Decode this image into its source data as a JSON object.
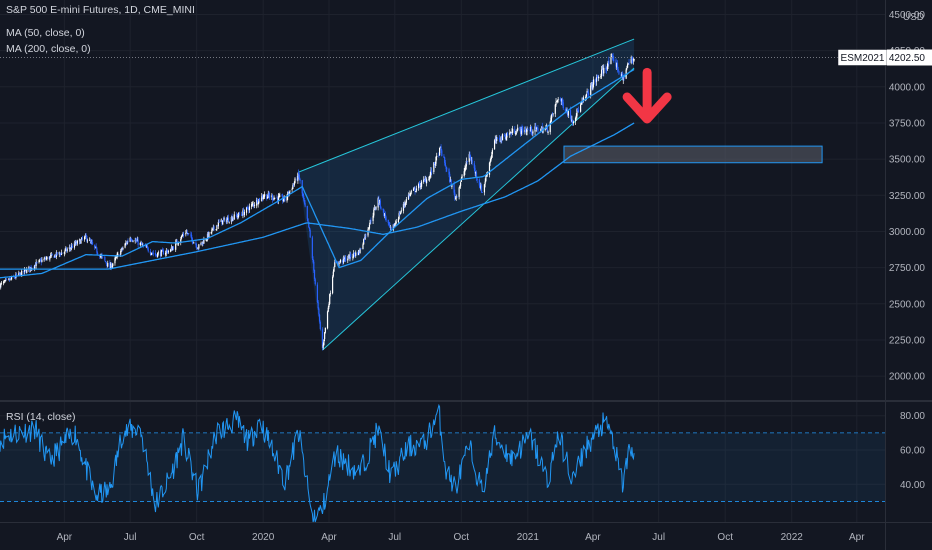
{
  "header": {
    "title": "S&P 500 E-mini Futures, 1D, CME_MINI",
    "ma50_label": "MA (50, close, 0)",
    "ma200_label": "MA (200, close, 0)",
    "rsi_label": "RSI (14, close)",
    "currency": "USD"
  },
  "price_tag": {
    "symbol": "ESM2021",
    "value": "4202.50"
  },
  "colors": {
    "background": "#131722",
    "candle_up": "#ffffff",
    "candle_down": "#2962ff",
    "ma": "#2196f3",
    "wedge_fill": "#2196f3",
    "wedge_line": "#26c6da",
    "target_box": "#5d606b",
    "arrow": "#f23645",
    "rsi_line": "#2196f3"
  },
  "chart_data": [
    {
      "type": "line",
      "title": "S&P 500 E-mini Futures, 1D, CME_MINI",
      "y_ticks": [
        "4500.00",
        "4250.00",
        "4000.00",
        "3750.00",
        "3500.00",
        "3250.00",
        "3000.00",
        "2750.00",
        "2500.00",
        "2250.00",
        "2000.00"
      ],
      "ylim": [
        1835,
        4600
      ],
      "x_ticks": [
        "Apr",
        "Jul",
        "Oct",
        "2020",
        "Apr",
        "Jul",
        "Oct",
        "2021",
        "Apr",
        "Jul",
        "Oct",
        "2022",
        "Apr"
      ],
      "x_tick_dates": [
        "2019-04-01",
        "2019-07-01",
        "2019-10-01",
        "2020-01-01",
        "2020-04-01",
        "2020-07-01",
        "2020-10-01",
        "2021-01-01",
        "2021-04-01",
        "2021-07-01",
        "2021-10-01",
        "2022-01-01",
        "2022-04-01"
      ],
      "xlim": [
        "2019-01-02",
        "2022-05-10"
      ],
      "price_keypoints": [
        [
          "2019-01-02",
          2630
        ],
        [
          "2019-02-01",
          2710
        ],
        [
          "2019-03-01",
          2800
        ],
        [
          "2019-04-01",
          2860
        ],
        [
          "2019-05-01",
          2960
        ],
        [
          "2019-06-03",
          2750
        ],
        [
          "2019-07-01",
          2960
        ],
        [
          "2019-08-05",
          2840
        ],
        [
          "2019-08-26",
          2870
        ],
        [
          "2019-09-16",
          3000
        ],
        [
          "2019-10-03",
          2890
        ],
        [
          "2019-11-01",
          3060
        ],
        [
          "2019-12-02",
          3120
        ],
        [
          "2020-01-02",
          3250
        ],
        [
          "2020-01-31",
          3220
        ],
        [
          "2020-02-19",
          3390
        ],
        [
          "2020-03-05",
          3000
        ],
        [
          "2020-03-23",
          2190
        ],
        [
          "2020-04-08",
          2770
        ],
        [
          "2020-05-13",
          2860
        ],
        [
          "2020-06-08",
          3220
        ],
        [
          "2020-06-26",
          3000
        ],
        [
          "2020-07-20",
          3250
        ],
        [
          "2020-08-18",
          3380
        ],
        [
          "2020-09-02",
          3570
        ],
        [
          "2020-09-23",
          3230
        ],
        [
          "2020-10-12",
          3530
        ],
        [
          "2020-10-30",
          3270
        ],
        [
          "2020-11-16",
          3620
        ],
        [
          "2020-12-15",
          3700
        ],
        [
          "2021-01-04",
          3700
        ],
        [
          "2021-01-29",
          3710
        ],
        [
          "2021-02-12",
          3930
        ],
        [
          "2021-03-04",
          3770
        ],
        [
          "2021-04-01",
          4020
        ],
        [
          "2021-04-29",
          4200
        ],
        [
          "2021-05-12",
          4050
        ],
        [
          "2021-05-20",
          4160
        ],
        [
          "2021-05-28",
          4202.5
        ]
      ],
      "ma50_keypoints": [
        [
          "2019-01-02",
          2680
        ],
        [
          "2019-03-01",
          2710
        ],
        [
          "2019-05-01",
          2840
        ],
        [
          "2019-06-20",
          2830
        ],
        [
          "2019-08-01",
          2930
        ],
        [
          "2019-09-01",
          2920
        ],
        [
          "2019-10-15",
          2950
        ],
        [
          "2019-12-01",
          3060
        ],
        [
          "2020-02-01",
          3240
        ],
        [
          "2020-02-24",
          3310
        ],
        [
          "2020-04-15",
          2750
        ],
        [
          "2020-05-15",
          2800
        ],
        [
          "2020-07-01",
          3030
        ],
        [
          "2020-08-15",
          3230
        ],
        [
          "2020-10-01",
          3360
        ],
        [
          "2020-11-01",
          3380
        ],
        [
          "2021-01-01",
          3620
        ],
        [
          "2021-03-01",
          3850
        ],
        [
          "2021-05-28",
          4120
        ]
      ],
      "ma200_keypoints": [
        [
          "2019-01-02",
          2740
        ],
        [
          "2019-06-01",
          2740
        ],
        [
          "2019-10-01",
          2860
        ],
        [
          "2020-01-01",
          2960
        ],
        [
          "2020-03-01",
          3060
        ],
        [
          "2020-05-01",
          3020
        ],
        [
          "2020-06-15",
          2980
        ],
        [
          "2020-08-01",
          3030
        ],
        [
          "2020-10-01",
          3140
        ],
        [
          "2020-12-01",
          3240
        ],
        [
          "2021-01-15",
          3350
        ],
        [
          "2021-03-01",
          3520
        ],
        [
          "2021-05-01",
          3670
        ],
        [
          "2021-05-28",
          3750
        ]
      ],
      "last_price": 4202.5
    },
    {
      "type": "line",
      "title": "RSI (14, close)",
      "y_ticks": [
        "80.00",
        "60.00",
        "40.00"
      ],
      "ylim": [
        18,
        88
      ],
      "bands": [
        30,
        70
      ],
      "rsi_keypoints": [
        [
          "2019-01-02",
          66
        ],
        [
          "2019-01-20",
          70
        ],
        [
          "2019-02-20",
          72
        ],
        [
          "2019-03-10",
          53
        ],
        [
          "2019-04-15",
          71
        ],
        [
          "2019-05-13",
          33
        ],
        [
          "2019-06-03",
          36
        ],
        [
          "2019-06-20",
          70
        ],
        [
          "2019-07-15",
          73
        ],
        [
          "2019-08-05",
          28
        ],
        [
          "2019-08-26",
          45
        ],
        [
          "2019-09-12",
          66
        ],
        [
          "2019-10-03",
          35
        ],
        [
          "2019-10-28",
          70
        ],
        [
          "2019-11-25",
          77
        ],
        [
          "2019-12-13",
          64
        ],
        [
          "2019-12-27",
          78
        ],
        [
          "2020-01-31",
          42
        ],
        [
          "2020-02-19",
          70
        ],
        [
          "2020-03-09",
          20
        ],
        [
          "2020-03-23",
          25
        ],
        [
          "2020-04-10",
          58
        ],
        [
          "2020-05-13",
          46
        ],
        [
          "2020-06-08",
          72
        ],
        [
          "2020-06-26",
          44
        ],
        [
          "2020-07-20",
          62
        ],
        [
          "2020-08-10",
          63
        ],
        [
          "2020-08-31",
          82
        ],
        [
          "2020-09-10",
          48
        ],
        [
          "2020-09-23",
          38
        ],
        [
          "2020-10-12",
          62
        ],
        [
          "2020-10-30",
          35
        ],
        [
          "2020-11-16",
          68
        ],
        [
          "2020-12-10",
          55
        ],
        [
          "2021-01-04",
          68
        ],
        [
          "2021-01-29",
          42
        ],
        [
          "2021-02-12",
          70
        ],
        [
          "2021-03-04",
          42
        ],
        [
          "2021-03-20",
          60
        ],
        [
          "2021-04-15",
          75
        ],
        [
          "2021-04-25",
          72
        ],
        [
          "2021-05-12",
          40
        ],
        [
          "2021-05-20",
          58
        ],
        [
          "2021-05-28",
          58
        ]
      ]
    }
  ],
  "annotations": {
    "wedge": {
      "upper": [
        [
          "2020-02-19",
          3410
        ],
        [
          "2021-05-28",
          4330
        ]
      ],
      "lower": [
        [
          "2020-03-23",
          2180
        ],
        [
          "2021-05-28",
          4130
        ]
      ]
    },
    "target_zone": {
      "from": "2021-02-20",
      "to": "2022-02-12",
      "high": 3590,
      "low": 3475
    },
    "arrow": {
      "date": "2021-06-15",
      "top": 4100,
      "bottom": 3750
    }
  }
}
